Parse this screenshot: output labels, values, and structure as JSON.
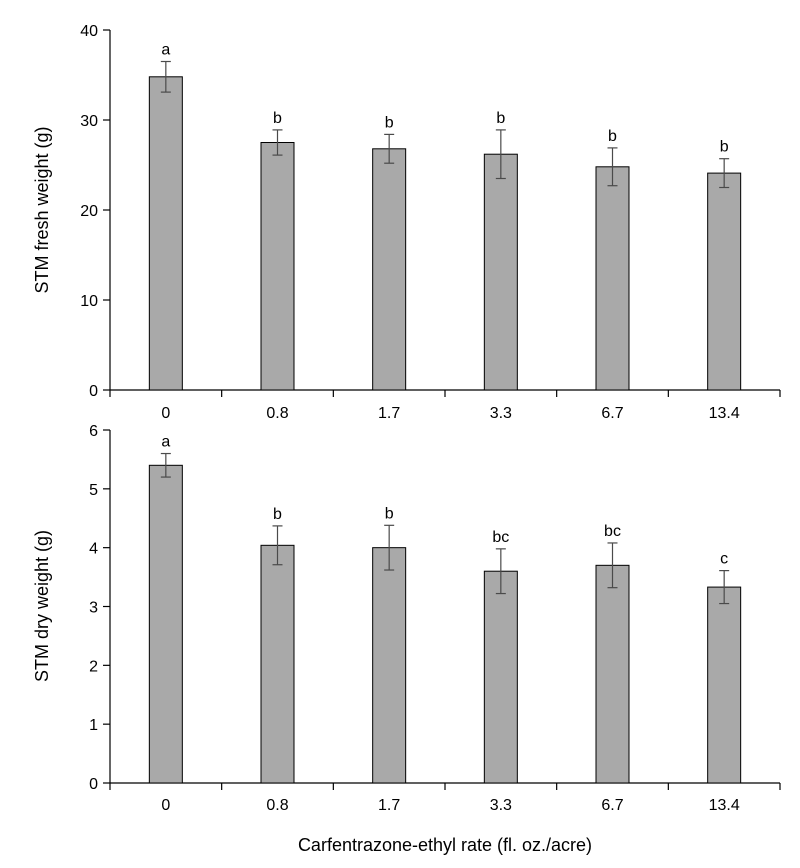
{
  "chart_data": [
    {
      "type": "bar",
      "categories": [
        "0",
        "0.8",
        "1.7",
        "3.3",
        "6.7",
        "13.4"
      ],
      "values": [
        34.8,
        27.5,
        26.8,
        26.2,
        24.8,
        24.1
      ],
      "errors": [
        1.7,
        1.4,
        1.6,
        2.7,
        2.1,
        1.6
      ],
      "significance": [
        "a",
        "b",
        "b",
        "b",
        "b",
        "b"
      ],
      "ylabel": "STM fresh weight (g)",
      "xlabel": "",
      "ylim": [
        0,
        40
      ],
      "yticks": [
        0,
        10,
        20,
        30,
        40
      ],
      "grid": false,
      "bar_color": "#a9a9a9"
    },
    {
      "type": "bar",
      "categories": [
        "0",
        "0.8",
        "1.7",
        "3.3",
        "6.7",
        "13.4"
      ],
      "values": [
        5.4,
        4.04,
        4.0,
        3.6,
        3.7,
        3.33
      ],
      "errors": [
        0.2,
        0.33,
        0.38,
        0.38,
        0.38,
        0.28
      ],
      "significance": [
        "a",
        "b",
        "b",
        "bc",
        "bc",
        "c"
      ],
      "ylabel": "STM dry weight (g)",
      "xlabel": "Carfentrazone-ethyl rate (fl. oz./acre)",
      "ylim": [
        0,
        6
      ],
      "yticks": [
        0,
        1,
        2,
        3,
        4,
        5,
        6
      ],
      "grid": false,
      "bar_color": "#a9a9a9"
    }
  ]
}
